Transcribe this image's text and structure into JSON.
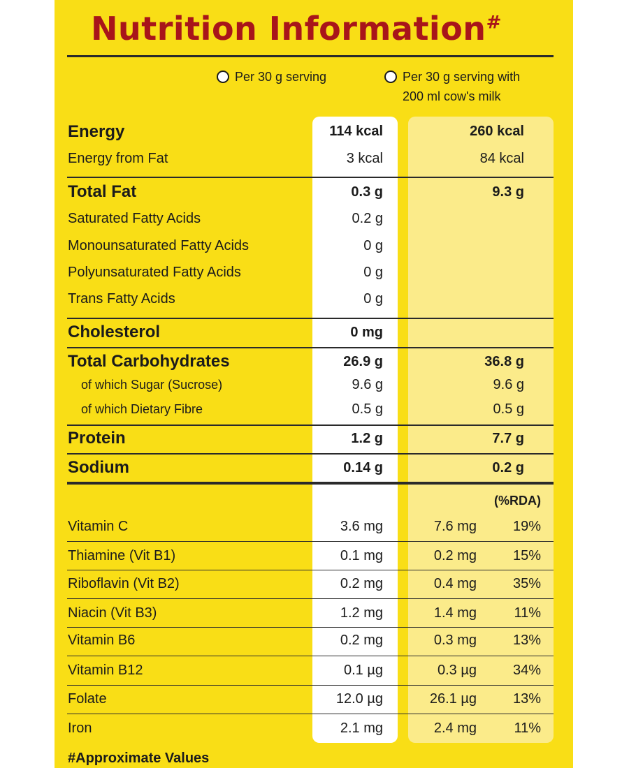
{
  "title": "Nutrition Information",
  "title_mark": "#",
  "legend": {
    "col1": "Per 30 g serving",
    "col2_line1": "Per 30 g serving with",
    "col2_line2": "200 ml cow's milk"
  },
  "macros": {
    "energy": {
      "label": "Energy",
      "v1": "114 kcal",
      "v2": "260 kcal"
    },
    "energy_fat": {
      "label": "Energy from Fat",
      "v1": "3 kcal",
      "v2": "84 kcal"
    },
    "total_fat": {
      "label": "Total Fat",
      "v1": "0.3 g",
      "v2": "9.3 g"
    },
    "sfa": {
      "label": "Saturated Fatty Acids",
      "v1": "0.2 g"
    },
    "mufa": {
      "label": "Monounsaturated Fatty Acids",
      "v1": "0 g"
    },
    "pufa": {
      "label": "Polyunsaturated Fatty Acids",
      "v1": "0 g"
    },
    "tfa": {
      "label": "Trans Fatty Acids",
      "v1": "0 g"
    },
    "cholesterol": {
      "label": "Cholesterol",
      "v1": "0 mg"
    },
    "carbs": {
      "label": "Total Carbohydrates",
      "v1": "26.9 g",
      "v2": "36.8 g"
    },
    "sugar": {
      "label": "of which Sugar (Sucrose)",
      "v1": "9.6 g",
      "v2": "9.6 g"
    },
    "fibre": {
      "label": "of which Dietary Fibre",
      "v1": "0.5 g",
      "v2": "0.5 g"
    },
    "protein": {
      "label": "Protein",
      "v1": "1.2 g",
      "v2": "7.7 g"
    },
    "sodium": {
      "label": "Sodium",
      "v1": "0.14 g",
      "v2": "0.2 g"
    }
  },
  "rda_header": "(%RDA)",
  "vitamins": {
    "vitc": {
      "label": "Vitamin C",
      "v1": "3.6 mg",
      "v2": "7.6 mg",
      "pct": "19%"
    },
    "b1": {
      "label": "Thiamine (Vit B1)",
      "v1": "0.1 mg",
      "v2": "0.2 mg",
      "pct": "15%"
    },
    "b2": {
      "label": "Riboflavin (Vit B2)",
      "v1": "0.2 mg",
      "v2": "0.4 mg",
      "pct": "35%"
    },
    "b3": {
      "label": "Niacin (Vit B3)",
      "v1": "1.2 mg",
      "v2": "1.4 mg",
      "pct": "11%"
    },
    "b6": {
      "label": "Vitamin B6",
      "v1": "0.2 mg",
      "v2": "0.3 mg",
      "pct": "13%"
    },
    "b12": {
      "label": "Vitamin B12",
      "v1": "0.1 µg",
      "v2": "0.3 µg",
      "pct": "34%"
    },
    "folate": {
      "label": "Folate",
      "v1": "12.0 µg",
      "v2": "26.1 µg",
      "pct": "13%"
    },
    "iron": {
      "label": "Iron",
      "v1": "2.1 mg",
      "v2": "2.4 mg",
      "pct": "11%"
    }
  },
  "footnote": "#Approximate Values",
  "colors": {
    "panel": "#f9de16",
    "title": "#a8151a",
    "col2_bg": "#fbeb8a"
  }
}
